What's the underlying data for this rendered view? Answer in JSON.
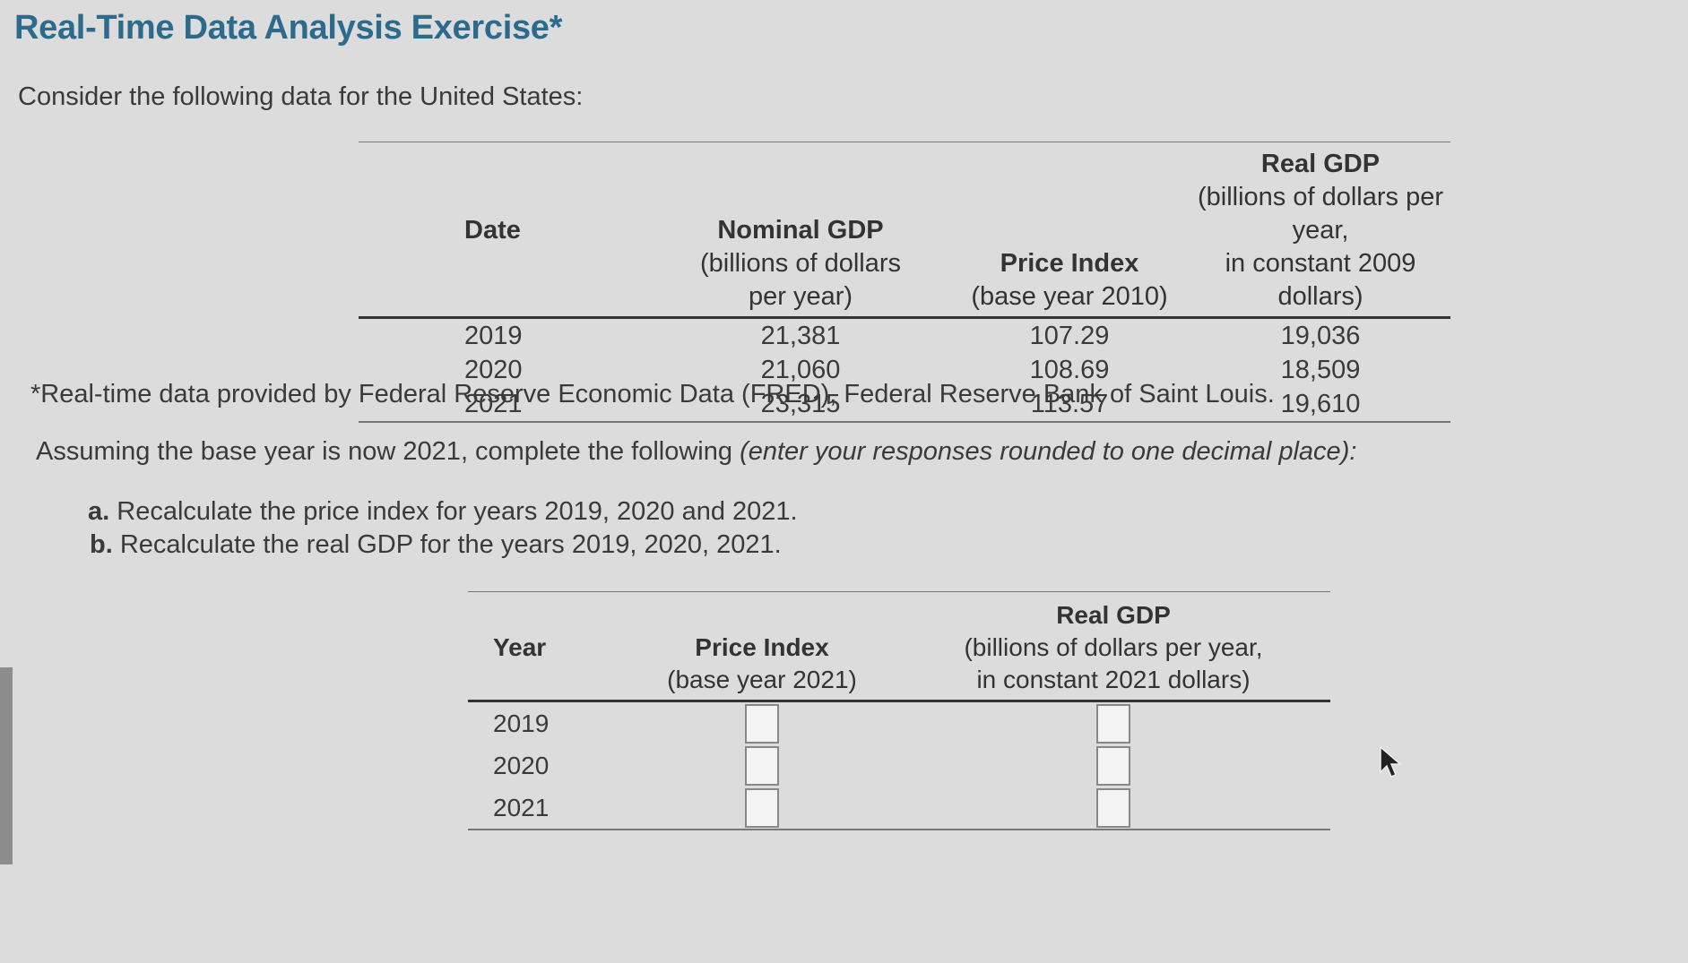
{
  "title": "Real-Time Data Analysis Exercise*",
  "intro": "Consider the following data for the United States:",
  "table1": {
    "headers": {
      "date": "Date",
      "nominal_title": "Nominal GDP",
      "nominal_line2": "(billions of dollars",
      "nominal_line3": "per year)",
      "price_title": "Price Index",
      "price_line2": "(base year 2010)",
      "real_title": "Real GDP",
      "real_line2": "(billions of dollars per year,",
      "real_line3": "in constant 2009 dollars)"
    },
    "rows": [
      {
        "date": "2019",
        "nominal": "21,381",
        "price": "107.29",
        "real": "19,036"
      },
      {
        "date": "2020",
        "nominal": "21,060",
        "price": "108.69",
        "real": "18,509"
      },
      {
        "date": "2021",
        "nominal": "23,315",
        "price": "113.57",
        "real": "19,610"
      }
    ]
  },
  "footnote": "*Real-time data provided by Federal Reserve Economic Data (FRED), Federal Reserve Bank of Saint Louis.",
  "instruction": {
    "text": "Assuming the base year is now 2021, complete the following ",
    "italic": "(enter your responses rounded to one decimal place):"
  },
  "items": {
    "a_label": "a.",
    "a_text": " Recalculate the price index for years 2019, 2020 and 2021.",
    "b_label": "b.",
    "b_text": " Recalculate the real GDP for the years 2019, 2020, 2021."
  },
  "table2": {
    "headers": {
      "year": "Year",
      "price_title": "Price Index",
      "price_line2": "(base year 2021)",
      "real_title": "Real GDP",
      "real_line2": "(billions of dollars per year,",
      "real_line3": "in constant 2021 dollars)"
    },
    "rows": [
      {
        "year": "2019",
        "price_input": "",
        "real_input": ""
      },
      {
        "year": "2020",
        "price_input": "",
        "real_input": ""
      },
      {
        "year": "2021",
        "price_input": "",
        "real_input": ""
      }
    ]
  }
}
